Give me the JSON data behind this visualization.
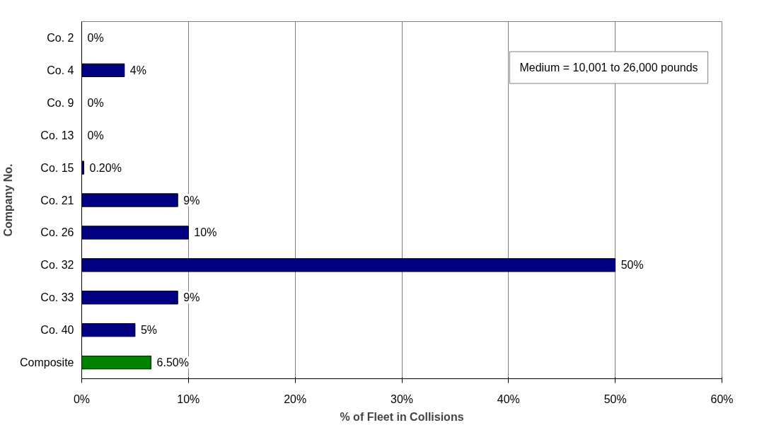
{
  "chart_data": {
    "type": "bar",
    "orientation": "horizontal",
    "xlabel": "% of Fleet in Collisions",
    "ylabel": "Company No.",
    "categories": [
      "Co. 2",
      "Co. 4",
      "Co. 9",
      "Co. 13",
      "Co. 15",
      "Co. 21",
      "Co. 26",
      "Co. 32",
      "Co. 33",
      "Co. 40",
      "Composite"
    ],
    "values": [
      0,
      4,
      0,
      0,
      0.2,
      9,
      10,
      50,
      9,
      5,
      6.5
    ],
    "colors": [
      "#000080",
      "#000080",
      "#000080",
      "#000080",
      "#000080",
      "#000080",
      "#000080",
      "#000080",
      "#000080",
      "#000080",
      "#008000"
    ],
    "value_labels": [
      "0%",
      "4%",
      "0%",
      "0%",
      "0.20%",
      "9%",
      "10%",
      "50%",
      "9%",
      "5%",
      "6.50%"
    ],
    "xlim": [
      0,
      60
    ],
    "xticks": [
      {
        "value": 0,
        "label": "0%"
      },
      {
        "value": 10,
        "label": "10%"
      },
      {
        "value": 20,
        "label": "20%"
      },
      {
        "value": 30,
        "label": "30%"
      },
      {
        "value": 40,
        "label": "40%"
      },
      {
        "value": 50,
        "label": "50%"
      },
      {
        "value": 60,
        "label": "60%"
      }
    ],
    "grid": "x",
    "annotations": [
      "Medium = 10,001 to 26,000 pounds"
    ]
  }
}
